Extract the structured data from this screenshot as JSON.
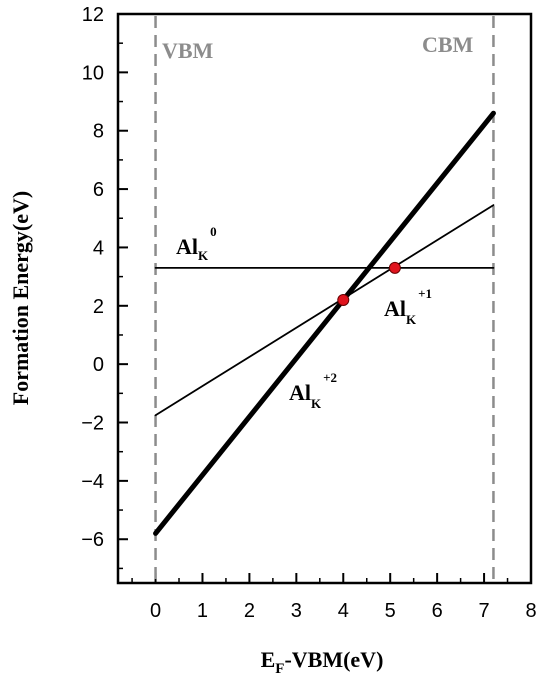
{
  "chart_data": {
    "type": "line",
    "xlabel": "E",
    "xlabel_sub": "F",
    "xlabel_rest": "-VBM(eV)",
    "ylabel": "Formation Energy(eV)",
    "xlim": [
      -0.8,
      8
    ],
    "ylim": [
      -7.5,
      12
    ],
    "xticks": [
      "0",
      "1",
      "2",
      "3",
      "4",
      "5",
      "6",
      "7",
      "8"
    ],
    "yticks": [
      "−6",
      "−4",
      "−2",
      "0",
      "2",
      "4",
      "6",
      "8",
      "10",
      "12"
    ],
    "vertical_lines": [
      {
        "x": 0,
        "label": "VBM"
      },
      {
        "x": 7.2,
        "label": "CBM"
      }
    ],
    "series": [
      {
        "label_main": "Al",
        "label_sub": "K",
        "label_sup": "0",
        "x": [
          0,
          7.2
        ],
        "y": [
          3.3,
          3.3
        ],
        "width": "thin"
      },
      {
        "label_main": "Al",
        "label_sub": "K",
        "label_sup": "+1",
        "x": [
          0,
          7.2
        ],
        "y": [
          -1.75,
          5.45
        ],
        "width": "thin"
      },
      {
        "label_main": "Al",
        "label_sub": "K",
        "label_sup": "+2",
        "x": [
          0,
          7.2
        ],
        "y": [
          -5.8,
          8.6
        ],
        "width": "thick"
      }
    ],
    "transition_points": [
      {
        "x": 4.0,
        "y": 2.2
      },
      {
        "x": 5.1,
        "y": 3.3
      }
    ],
    "colors": {
      "axis": "#000000",
      "edge_lines": "#8c8c8c",
      "points": "#e0141e"
    }
  }
}
